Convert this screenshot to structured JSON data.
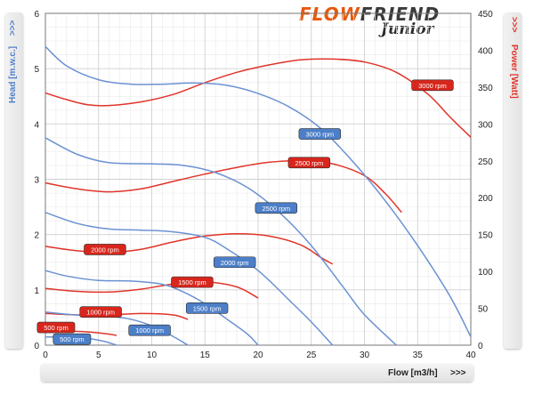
{
  "logo": {
    "part1": "FLOW",
    "part2": "FRIEND",
    "sub": "Junior"
  },
  "chart_data": {
    "type": "line",
    "xlabel": "Flow [m3/h]",
    "xlabel_arrows": ">>>",
    "ylabel_left": "Head [m.w.c.]",
    "ylabel_left_arrows": ">>>",
    "ylabel_right": "Power [Watt]",
    "ylabel_right_arrows": ">>>",
    "xlim": [
      0,
      40
    ],
    "ylim_left": [
      0,
      6
    ],
    "ylim_right": [
      0,
      450
    ],
    "x_ticks": [
      "0",
      "5",
      "10",
      "15",
      "20",
      "25",
      "30",
      "35",
      "40"
    ],
    "y_left_ticks": [
      "0",
      "1",
      "2",
      "3",
      "4",
      "5",
      "6"
    ],
    "y_right_ticks": [
      "0",
      "50",
      "100",
      "150",
      "200",
      "250",
      "300",
      "350",
      "400",
      "450"
    ],
    "grid": true,
    "colors": {
      "head": "#6b92d2",
      "power": "#e0342a"
    },
    "head_series": [
      {
        "name": "3000 rpm",
        "axis": "left",
        "points": [
          [
            0,
            5.4
          ],
          [
            2,
            5.05
          ],
          [
            5,
            4.8
          ],
          [
            8,
            4.72
          ],
          [
            11,
            4.72
          ],
          [
            14,
            4.74
          ],
          [
            17,
            4.7
          ],
          [
            20,
            4.55
          ],
          [
            23,
            4.3
          ],
          [
            26,
            3.9
          ],
          [
            29,
            3.3
          ],
          [
            32,
            2.6
          ],
          [
            35,
            1.8
          ],
          [
            38,
            0.9
          ],
          [
            40,
            0.15
          ]
        ]
      },
      {
        "name": "2500 rpm",
        "axis": "left",
        "points": [
          [
            0,
            3.75
          ],
          [
            3,
            3.45
          ],
          [
            6,
            3.3
          ],
          [
            10,
            3.28
          ],
          [
            13,
            3.25
          ],
          [
            16,
            3.12
          ],
          [
            19,
            2.85
          ],
          [
            22,
            2.4
          ],
          [
            25,
            1.8
          ],
          [
            28,
            1.05
          ],
          [
            30,
            0.55
          ],
          [
            33,
            0.0
          ]
        ]
      },
      {
        "name": "2000 rpm",
        "axis": "left",
        "points": [
          [
            0,
            2.4
          ],
          [
            3,
            2.2
          ],
          [
            6,
            2.1
          ],
          [
            9,
            2.08
          ],
          [
            12,
            2.05
          ],
          [
            15,
            1.95
          ],
          [
            17,
            1.75
          ],
          [
            20,
            1.35
          ],
          [
            23,
            0.8
          ],
          [
            25,
            0.42
          ],
          [
            27,
            0.0
          ]
        ]
      },
      {
        "name": "1500 rpm",
        "axis": "left",
        "points": [
          [
            0,
            1.35
          ],
          [
            2,
            1.25
          ],
          [
            5,
            1.17
          ],
          [
            8,
            1.16
          ],
          [
            11,
            1.1
          ],
          [
            13,
            0.96
          ],
          [
            15,
            0.75
          ],
          [
            17,
            0.48
          ],
          [
            19,
            0.2
          ],
          [
            20,
            0.0
          ]
        ]
      },
      {
        "name": "1000 rpm",
        "axis": "left",
        "points": [
          [
            0,
            0.6
          ],
          [
            2,
            0.56
          ],
          [
            4,
            0.53
          ],
          [
            6,
            0.52
          ],
          [
            8,
            0.47
          ],
          [
            10,
            0.35
          ],
          [
            12,
            0.16
          ],
          [
            13.4,
            0.0
          ]
        ]
      },
      {
        "name": "500 rpm",
        "axis": "left",
        "points": [
          [
            0,
            0.15
          ],
          [
            2,
            0.14
          ],
          [
            4,
            0.12
          ],
          [
            5.5,
            0.07
          ],
          [
            6.7,
            0.0
          ]
        ]
      }
    ],
    "power_series": [
      {
        "name": "3000 rpm",
        "axis": "right",
        "points": [
          [
            0,
            342
          ],
          [
            2,
            333
          ],
          [
            4,
            326
          ],
          [
            6,
            325
          ],
          [
            9,
            330
          ],
          [
            12,
            340
          ],
          [
            15,
            356
          ],
          [
            18,
            370
          ],
          [
            21,
            380
          ],
          [
            24,
            387
          ],
          [
            27,
            388
          ],
          [
            30,
            384
          ],
          [
            33,
            370
          ],
          [
            36,
            340
          ],
          [
            38,
            310
          ],
          [
            40,
            282
          ]
        ]
      },
      {
        "name": "2500 rpm",
        "axis": "right",
        "points": [
          [
            0,
            220
          ],
          [
            3,
            212
          ],
          [
            6,
            208
          ],
          [
            9,
            212
          ],
          [
            12,
            222
          ],
          [
            15,
            232
          ],
          [
            18,
            241
          ],
          [
            21,
            248
          ],
          [
            24,
            250
          ],
          [
            27,
            246
          ],
          [
            30,
            230
          ],
          [
            32,
            205
          ],
          [
            33.5,
            180
          ]
        ]
      },
      {
        "name": "2000 rpm",
        "axis": "right",
        "points": [
          [
            0,
            134
          ],
          [
            3,
            128
          ],
          [
            6,
            126
          ],
          [
            9,
            130
          ],
          [
            12,
            140
          ],
          [
            15,
            148
          ],
          [
            18,
            151
          ],
          [
            21,
            148
          ],
          [
            24,
            136
          ],
          [
            26,
            118
          ],
          [
            27,
            110
          ]
        ]
      },
      {
        "name": "1500 rpm",
        "axis": "right",
        "points": [
          [
            0,
            77
          ],
          [
            3,
            73
          ],
          [
            6,
            72
          ],
          [
            9,
            76
          ],
          [
            12,
            83
          ],
          [
            15,
            86
          ],
          [
            18,
            79
          ],
          [
            20,
            64
          ]
        ]
      },
      {
        "name": "1000 rpm",
        "axis": "right",
        "points": [
          [
            0,
            43
          ],
          [
            3,
            41
          ],
          [
            6,
            41
          ],
          [
            9,
            43
          ],
          [
            12,
            41
          ],
          [
            13.4,
            35
          ]
        ]
      },
      {
        "name": "500 rpm",
        "axis": "right",
        "points": [
          [
            0,
            20
          ],
          [
            2,
            19
          ],
          [
            4,
            18
          ],
          [
            6,
            15
          ],
          [
            6.7,
            13
          ]
        ]
      }
    ],
    "labels": [
      {
        "text": "3000 rpm",
        "series": "head",
        "at": [
          25.8,
          3.82
        ]
      },
      {
        "text": "2500 rpm",
        "series": "head",
        "at": [
          21.7,
          2.48
        ]
      },
      {
        "text": "2000 rpm",
        "series": "head",
        "at": [
          17.8,
          1.5
        ]
      },
      {
        "text": "1500 rpm",
        "series": "head",
        "at": [
          15.2,
          0.67
        ]
      },
      {
        "text": "1000 rpm",
        "series": "head",
        "at": [
          9.8,
          0.27
        ]
      },
      {
        "text": "500 rpm",
        "series": "head",
        "at": [
          2.5,
          0.11
        ]
      },
      {
        "text": "3000 rpm",
        "series": "power",
        "at": [
          36.4,
          4.7
        ]
      },
      {
        "text": "2500 rpm",
        "series": "power",
        "at": [
          24.8,
          3.3
        ]
      },
      {
        "text": "2000 rpm",
        "series": "power",
        "at": [
          5.6,
          1.73
        ]
      },
      {
        "text": "1500 rpm",
        "series": "power",
        "at": [
          13.8,
          1.14
        ]
      },
      {
        "text": "1000 rpm",
        "series": "power",
        "at": [
          5.2,
          0.6
        ]
      },
      {
        "text": "500 rpm",
        "series": "power",
        "at": [
          1.0,
          0.32
        ]
      }
    ]
  }
}
